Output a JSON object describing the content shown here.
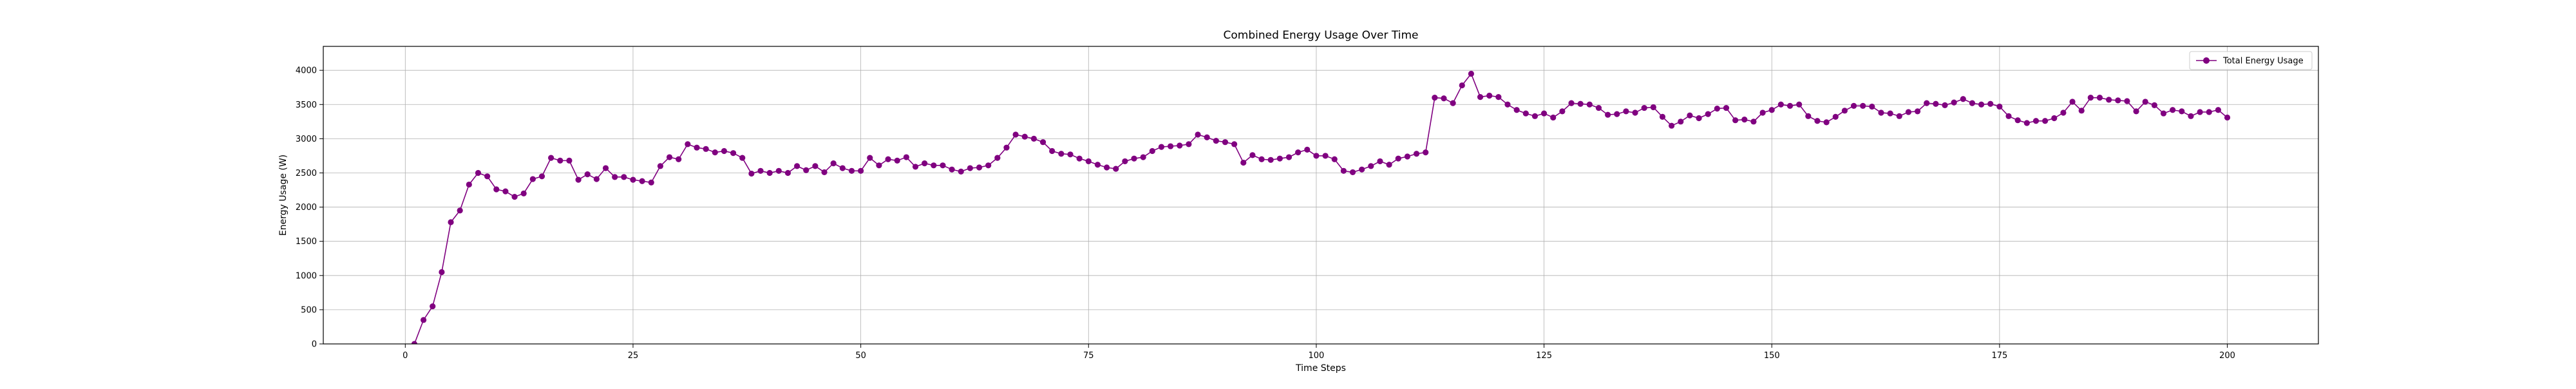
{
  "chart_data": {
    "type": "line",
    "title": "Combined Energy Usage Over Time",
    "xlabel": "Time Steps",
    "ylabel": "Energy Usage (W)",
    "xlim": [
      -9,
      210
    ],
    "ylim": [
      0,
      4350
    ],
    "xticks": [
      0,
      25,
      50,
      75,
      100,
      125,
      150,
      175,
      200
    ],
    "yticks": [
      0,
      500,
      1000,
      1500,
      2000,
      2500,
      3000,
      3500,
      4000
    ],
    "grid": true,
    "legend_position": "top-right",
    "series": [
      {
        "name": "Total Energy Usage",
        "color": "#800080",
        "marker": "circle",
        "x": [
          0,
          1,
          2,
          3,
          4,
          5,
          6,
          7,
          8,
          9,
          10,
          11,
          12,
          13,
          14,
          15,
          16,
          17,
          18,
          19,
          20,
          21,
          22,
          23,
          24,
          25,
          26,
          27,
          28,
          29,
          30,
          31,
          32,
          33,
          34,
          35,
          36,
          37,
          38,
          39,
          40,
          41,
          42,
          43,
          44,
          45,
          46,
          47,
          48,
          49,
          50,
          51,
          52,
          53,
          54,
          55,
          56,
          57,
          58,
          59,
          60,
          61,
          62,
          63,
          64,
          65,
          66,
          67,
          68,
          69,
          70,
          71,
          72,
          73,
          74,
          75,
          76,
          77,
          78,
          79,
          80,
          81,
          82,
          83,
          84,
          85,
          86,
          87,
          88,
          89,
          90,
          91,
          92,
          93,
          94,
          95,
          96,
          97,
          98,
          99,
          100,
          101,
          102,
          103,
          104,
          105,
          106,
          107,
          108,
          109,
          110,
          111,
          112,
          113,
          114,
          115,
          116,
          117,
          118,
          119,
          120,
          121,
          122,
          123,
          124,
          125,
          126,
          127,
          128,
          129,
          130,
          131,
          132,
          133,
          134,
          135,
          136,
          137,
          138,
          139,
          140,
          141,
          142,
          143,
          144,
          145,
          146,
          147,
          148,
          149,
          150,
          151,
          152,
          153,
          154,
          155,
          156,
          157,
          158,
          159,
          160,
          161,
          162,
          163,
          164,
          165,
          166,
          167,
          168,
          169,
          170,
          171,
          172,
          173,
          174,
          175,
          176,
          177,
          178,
          179,
          180,
          181,
          182,
          183,
          184,
          185,
          186,
          187,
          188,
          189,
          190,
          191,
          192,
          193,
          194,
          195,
          196,
          197,
          198,
          199,
          200
        ],
        "y": [
          -50,
          0,
          350,
          550,
          1050,
          1780,
          1950,
          2330,
          2500,
          2450,
          2260,
          2230,
          2150,
          2200,
          2410,
          2450,
          2720,
          2680,
          2680,
          2400,
          2480,
          2410,
          2570,
          2440,
          2440,
          2400,
          2380,
          2360,
          2600,
          2730,
          2700,
          2920,
          2870,
          2850,
          2800,
          2820,
          2790,
          2720,
          2490,
          2530,
          2500,
          2530,
          2500,
          2600,
          2540,
          2600,
          2510,
          2640,
          2570,
          2530,
          2530,
          2720,
          2610,
          2700,
          2680,
          2730,
          2590,
          2640,
          2610,
          2610,
          2550,
          2520,
          2570,
          2580,
          2610,
          2720,
          2870,
          3060,
          3030,
          3000,
          2950,
          2820,
          2780,
          2770,
          2710,
          2670,
          2620,
          2580,
          2560,
          2670,
          2710,
          2730,
          2820,
          2880,
          2890,
          2900,
          2920,
          3060,
          3020,
          2970,
          2950,
          2920,
          2650,
          2760,
          2700,
          2690,
          2710,
          2730,
          2800,
          2840,
          2750,
          2750,
          2700,
          2530,
          2510,
          2550,
          2600,
          2670,
          2620,
          2710,
          2740,
          2780,
          2800,
          3600,
          3590,
          3520,
          3780,
          3950,
          3610,
          3630,
          3610,
          3500,
          3420,
          3370,
          3330,
          3370,
          3310,
          3400,
          3520,
          3510,
          3500,
          3450,
          3350,
          3360,
          3400,
          3380,
          3450,
          3460,
          3320,
          3190,
          3250,
          3340,
          3300,
          3360,
          3440,
          3450,
          3270,
          3280,
          3250,
          3380,
          3420,
          3500,
          3480,
          3500,
          3330,
          3260,
          3240,
          3320,
          3410,
          3480,
          3480,
          3470,
          3380,
          3370,
          3330,
          3390,
          3400,
          3520,
          3510,
          3490,
          3530,
          3580,
          3520,
          3500,
          3510,
          3470,
          3330,
          3270,
          3230,
          3260,
          3260,
          3300,
          3380,
          3540,
          3410,
          3600,
          3600,
          3570,
          3560,
          3550,
          3400,
          3540,
          3490,
          3370,
          3420,
          3400,
          3330,
          3390,
          3390,
          3420,
          3310
        ]
      }
    ]
  }
}
